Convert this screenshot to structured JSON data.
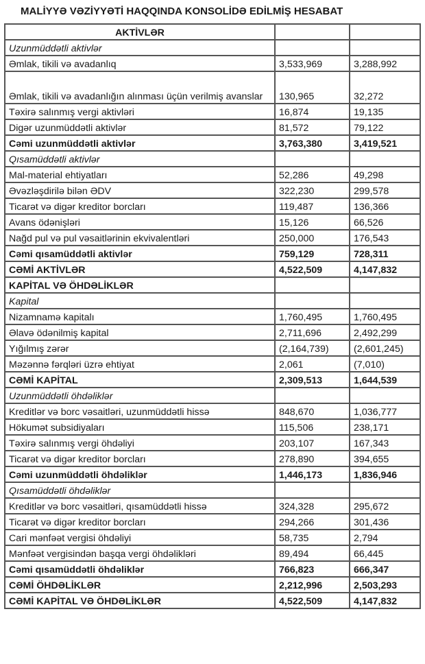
{
  "title": "MALİYYƏ VƏZİYYƏTİ HAQQINDA KONSOLİDƏ EDİLMİŞ HESABAT",
  "rows": [
    {
      "label": "AKTİVLƏR",
      "v1": "",
      "v2": "",
      "style": "bold center"
    },
    {
      "label": "Uzunmüddətli aktivlər",
      "v1": "",
      "v2": "",
      "style": "italic"
    },
    {
      "label": "Əmlak, tikili və avadanlıq",
      "v1": "3,533,969",
      "v2": "3,288,992",
      "style": ""
    },
    {
      "label": "Əmlak, tikili və avadanlığın alınması üçün verilmiş avanslar",
      "v1": "130,965",
      "v2": "32,272",
      "style": "tall"
    },
    {
      "label": "Təxirə salınmış vergi aktivləri",
      "v1": "16,874",
      "v2": "19,135",
      "style": ""
    },
    {
      "label": "Digər uzunmüddətli aktivlər",
      "v1": "81,572",
      "v2": "79,122",
      "style": ""
    },
    {
      "label": "Cəmi uzunmüddətli aktivlər",
      "v1": "3,763,380",
      "v2": "3,419,521",
      "style": "bold"
    },
    {
      "label": "Qısamüddətli aktivlər",
      "v1": "",
      "v2": "",
      "style": "italic"
    },
    {
      "label": "Mal-material ehtiyatları",
      "v1": "52,286",
      "v2": "49,298",
      "style": ""
    },
    {
      "label": "Əvəzləşdirilə bilən ƏDV",
      "v1": "322,230",
      "v2": "299,578",
      "style": ""
    },
    {
      "label": "Ticarət və digər kreditor borcları",
      "v1": "119,487",
      "v2": "136,366",
      "style": ""
    },
    {
      "label": "Avans ödənişləri",
      "v1": "15,126",
      "v2": "66,526",
      "style": ""
    },
    {
      "label": "Nağd pul və pul vəsaitlərinin ekvivalentləri",
      "v1": "250,000",
      "v2": "176,543",
      "style": ""
    },
    {
      "label": "Cəmi qısamüddətli aktivlər",
      "v1": "759,129",
      "v2": "728,311",
      "style": "bold"
    },
    {
      "label": "CƏMİ AKTİVLƏR",
      "v1": "4,522,509",
      "v2": "4,147,832",
      "style": "bold"
    },
    {
      "label": "KAPİTAL VƏ ÖHDƏLİKLƏR",
      "v1": "",
      "v2": "",
      "style": "bold"
    },
    {
      "label": "Kapital",
      "v1": "",
      "v2": "",
      "style": "italic"
    },
    {
      "label": "Nizamnamə kapitalı",
      "v1": "1,760,495",
      "v2": "1,760,495",
      "style": ""
    },
    {
      "label": "Əlavə ödənilmiş kapital",
      "v1": "2,711,696",
      "v2": "2,492,299",
      "style": ""
    },
    {
      "label": "Yığılmış zərər",
      "v1": "(2,164,739)",
      "v2": "(2,601,245)",
      "style": ""
    },
    {
      "label": "Məzənnə fərqləri üzrə ehtiyat",
      "v1": "2,061",
      "v2": "(7,010)",
      "style": ""
    },
    {
      "label": "CƏMİ KAPİTAL",
      "v1": "2,309,513",
      "v2": "1,644,539",
      "style": "bold"
    },
    {
      "label": "Uzunmüddətli öhdəliklər",
      "v1": "",
      "v2": "",
      "style": "italic"
    },
    {
      "label": "Kreditlər və borc vəsaitləri, uzunmüddətli hissə",
      "v1": "848,670",
      "v2": "1,036,777",
      "style": ""
    },
    {
      "label": "Hökumət subsidiyaları",
      "v1": "115,506",
      "v2": "238,171",
      "style": ""
    },
    {
      "label": "Təxirə salınmış vergi öhdəliyi",
      "v1": "203,107",
      "v2": "167,343",
      "style": ""
    },
    {
      "label": "Ticarət və digər kreditor borcları",
      "v1": "278,890",
      "v2": "394,655",
      "style": ""
    },
    {
      "label": "Cəmi uzunmüddətli öhdəliklər",
      "v1": "1,446,173",
      "v2": "1,836,946",
      "style": "bold"
    },
    {
      "label": "Qısamüddətli öhdəliklər",
      "v1": "",
      "v2": "",
      "style": "italic"
    },
    {
      "label": "Kreditlər və borc vəsaitləri, qısamüddətli hissə",
      "v1": "324,328",
      "v2": "295,672",
      "style": ""
    },
    {
      "label": "Ticarət və digər kreditor borcları",
      "v1": "294,266",
      "v2": "301,436",
      "style": ""
    },
    {
      "label": "Cari mənfəət vergisi öhdəliyi",
      "v1": "58,735",
      "v2": "2,794",
      "style": ""
    },
    {
      "label": "Mənfəət vergisindən başqa vergi öhdəlikləri",
      "v1": "89,494",
      "v2": "66,445",
      "style": ""
    },
    {
      "label": "Cəmi qısamüddətli öhdəliklər",
      "v1": "766,823",
      "v2": "666,347",
      "style": "bold"
    },
    {
      "label": "CƏMİ ÖHDƏLİKLƏR",
      "v1": "2,212,996",
      "v2": "2,503,293",
      "style": "bold"
    },
    {
      "label": "CƏMİ KAPİTAL VƏ ÖHDƏLİKLƏR",
      "v1": "4,522,509",
      "v2": "4,147,832",
      "style": "bold"
    }
  ]
}
